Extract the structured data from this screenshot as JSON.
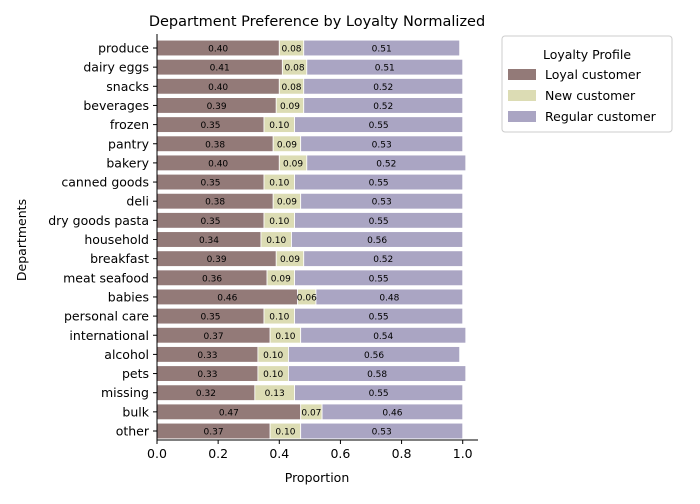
{
  "chart_data": {
    "type": "bar",
    "orientation": "horizontal",
    "stacked": true,
    "title": "Department Preference by Loyalty Normalized",
    "xlabel": "Proportion",
    "ylabel": "Departments",
    "xlim": [
      0,
      1.05
    ],
    "xticks": [
      "0.0",
      "0.2",
      "0.4",
      "0.6",
      "0.8",
      "1.0"
    ],
    "grid": false,
    "legend": {
      "title": "Loyalty Profile",
      "placement": "upper-right-outside"
    },
    "categories": [
      "produce",
      "dairy eggs",
      "snacks",
      "beverages",
      "frozen",
      "pantry",
      "bakery",
      "canned goods",
      "deli",
      "dry goods pasta",
      "household",
      "breakfast",
      "meat seafood",
      "babies",
      "personal care",
      "international",
      "alcohol",
      "pets",
      "missing",
      "bulk",
      "other"
    ],
    "series": [
      {
        "name": "Loyal customer",
        "color": "#937a78",
        "values": [
          0.4,
          0.41,
          0.4,
          0.39,
          0.35,
          0.38,
          0.4,
          0.35,
          0.38,
          0.35,
          0.34,
          0.39,
          0.36,
          0.46,
          0.35,
          0.37,
          0.33,
          0.33,
          0.32,
          0.47,
          0.37
        ]
      },
      {
        "name": "New customer",
        "color": "#dcdcb4",
        "values": [
          0.08,
          0.08,
          0.08,
          0.09,
          0.1,
          0.09,
          0.09,
          0.1,
          0.09,
          0.1,
          0.1,
          0.09,
          0.09,
          0.06,
          0.1,
          0.1,
          0.1,
          0.1,
          0.13,
          0.07,
          0.1
        ]
      },
      {
        "name": "Regular customer",
        "color": "#aaa5c3",
        "values": [
          0.51,
          0.51,
          0.52,
          0.52,
          0.55,
          0.53,
          0.52,
          0.55,
          0.53,
          0.55,
          0.56,
          0.52,
          0.55,
          0.48,
          0.55,
          0.54,
          0.56,
          0.58,
          0.55,
          0.46,
          0.53
        ]
      }
    ]
  }
}
